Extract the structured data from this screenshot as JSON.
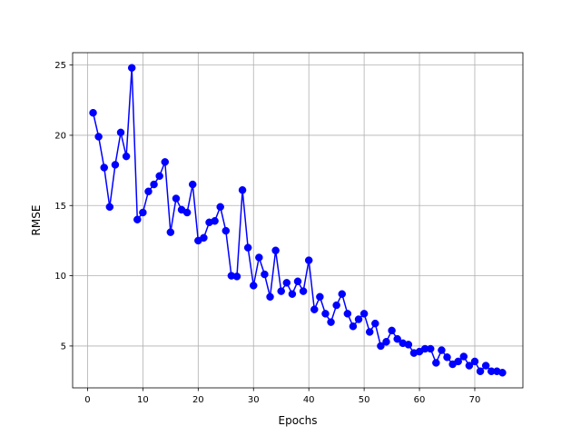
{
  "chart_data": {
    "type": "line",
    "title": "",
    "xlabel": "Epochs",
    "ylabel": "RMSE",
    "xlim": [
      -2.7,
      78.7
    ],
    "ylim": [
      2.02,
      25.88
    ],
    "grid": true,
    "legend": "none",
    "x_ticks": [
      0,
      10,
      20,
      30,
      40,
      50,
      60,
      70
    ],
    "y_ticks": [
      5,
      10,
      15,
      20,
      25
    ],
    "series": [
      {
        "color": "#0000ff",
        "marker": "circle",
        "x": [
          1,
          2,
          3,
          4,
          5,
          6,
          7,
          8,
          9,
          10,
          11,
          12,
          13,
          14,
          15,
          16,
          17,
          18,
          19,
          20,
          21,
          22,
          23,
          24,
          25,
          26,
          27,
          28,
          29,
          30,
          31,
          32,
          33,
          34,
          35,
          36,
          37,
          38,
          39,
          40,
          41,
          42,
          43,
          44,
          45,
          46,
          47,
          48,
          49,
          50,
          51,
          52,
          53,
          54,
          55,
          56,
          57,
          58,
          59,
          60,
          61,
          62,
          63,
          64,
          65,
          66,
          67,
          68,
          69,
          70,
          71,
          72,
          73,
          74,
          75
        ],
        "values": [
          21.6,
          19.9,
          17.7,
          14.9,
          17.9,
          20.2,
          18.5,
          24.8,
          14.0,
          14.5,
          16.0,
          16.5,
          17.1,
          18.1,
          13.1,
          15.5,
          14.7,
          14.5,
          16.5,
          12.5,
          12.7,
          13.8,
          13.9,
          14.9,
          13.2,
          10.0,
          9.95,
          16.1,
          12.0,
          9.3,
          11.3,
          10.1,
          8.5,
          11.8,
          8.9,
          9.5,
          8.7,
          9.6,
          8.9,
          11.1,
          7.6,
          8.5,
          7.3,
          6.7,
          7.9,
          8.7,
          7.3,
          6.4,
          6.9,
          7.3,
          6.0,
          6.6,
          5.0,
          5.3,
          6.1,
          5.5,
          5.2,
          5.1,
          4.5,
          4.6,
          4.8,
          4.8,
          3.8,
          4.7,
          4.2,
          3.7,
          3.9,
          4.25,
          3.6,
          3.9,
          3.2,
          3.6,
          3.2,
          3.2,
          3.1
        ]
      }
    ]
  }
}
